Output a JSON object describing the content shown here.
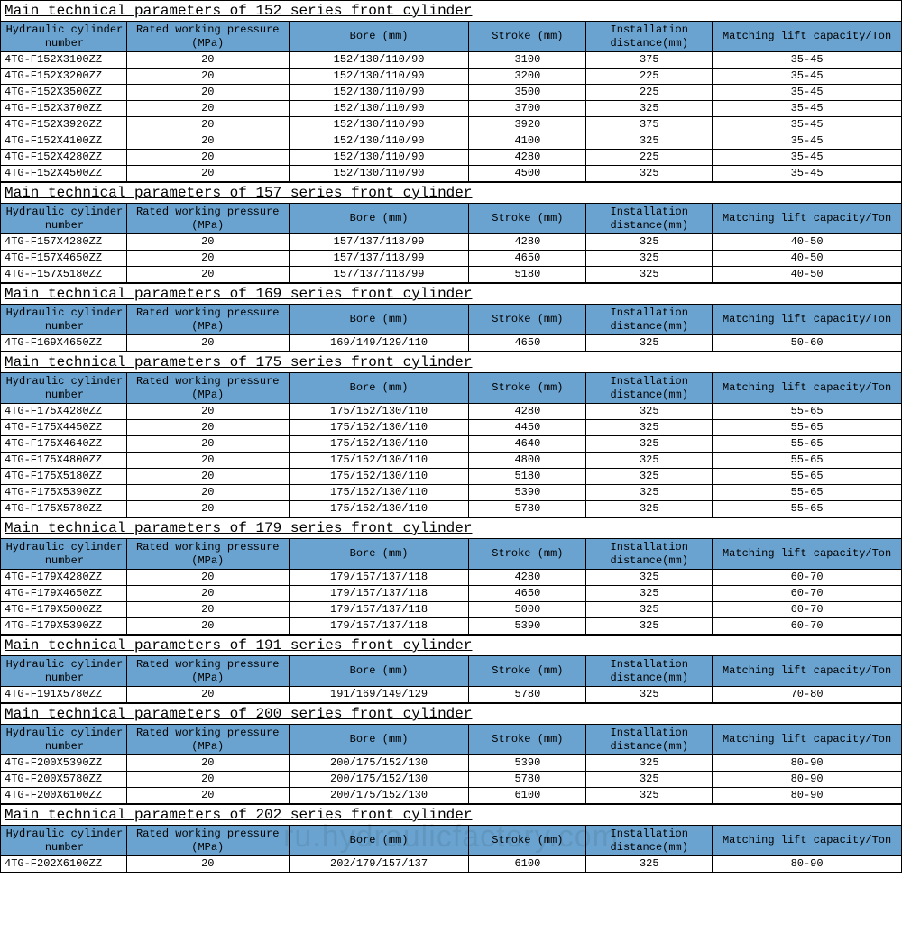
{
  "columns": [
    "Hydraulic cylinder number",
    "Rated working pressure (MPa)",
    "Bore (mm)",
    "Stroke (mm)",
    "Installation distance(mm)",
    "Matching lift capacity/Ton"
  ],
  "watermark": "ru.hydraulicfactory.com",
  "header_bg": "#6aa3d0",
  "sections": [
    {
      "title": "Main technical parameters of 152 series front cylinder",
      "rows": [
        [
          "4TG-F152X3100ZZ",
          "20",
          "152/130/110/90",
          "3100",
          "375",
          "35-45"
        ],
        [
          "4TG-F152X3200ZZ",
          "20",
          "152/130/110/90",
          "3200",
          "225",
          "35-45"
        ],
        [
          "4TG-F152X3500ZZ",
          "20",
          "152/130/110/90",
          "3500",
          "225",
          "35-45"
        ],
        [
          "4TG-F152X3700ZZ",
          "20",
          "152/130/110/90",
          "3700",
          "325",
          "35-45"
        ],
        [
          "4TG-F152X3920ZZ",
          "20",
          "152/130/110/90",
          "3920",
          "375",
          "35-45"
        ],
        [
          "4TG-F152X4100ZZ",
          "20",
          "152/130/110/90",
          "4100",
          "325",
          "35-45"
        ],
        [
          "4TG-F152X4280ZZ",
          "20",
          "152/130/110/90",
          "4280",
          "225",
          "35-45"
        ],
        [
          "4TG-F152X4500ZZ",
          "20",
          "152/130/110/90",
          "4500",
          "325",
          "35-45"
        ]
      ]
    },
    {
      "title": "Main technical parameters of 157 series front cylinder",
      "rows": [
        [
          "4TG-F157X4280ZZ",
          "20",
          "157/137/118/99",
          "4280",
          "325",
          "40-50"
        ],
        [
          "4TG-F157X4650ZZ",
          "20",
          "157/137/118/99",
          "4650",
          "325",
          "40-50"
        ],
        [
          "4TG-F157X5180ZZ",
          "20",
          "157/137/118/99",
          "5180",
          "325",
          "40-50"
        ]
      ]
    },
    {
      "title": "Main technical parameters of 169 series front cylinder",
      "rows": [
        [
          "4TG-F169X4650ZZ",
          "20",
          "169/149/129/110",
          "4650",
          "325",
          "50-60"
        ]
      ]
    },
    {
      "title": "Main technical parameters of 175 series front cylinder",
      "rows": [
        [
          "4TG-F175X4280ZZ",
          "20",
          "175/152/130/110",
          "4280",
          "325",
          "55-65"
        ],
        [
          "4TG-F175X4450ZZ",
          "20",
          "175/152/130/110",
          "4450",
          "325",
          "55-65"
        ],
        [
          "4TG-F175X4640ZZ",
          "20",
          "175/152/130/110",
          "4640",
          "325",
          "55-65"
        ],
        [
          "4TG-F175X4800ZZ",
          "20",
          "175/152/130/110",
          "4800",
          "325",
          "55-65"
        ],
        [
          "4TG-F175X5180ZZ",
          "20",
          "175/152/130/110",
          "5180",
          "325",
          "55-65"
        ],
        [
          "4TG-F175X5390ZZ",
          "20",
          "175/152/130/110",
          "5390",
          "325",
          "55-65"
        ],
        [
          "4TG-F175X5780ZZ",
          "20",
          "175/152/130/110",
          "5780",
          "325",
          "55-65"
        ]
      ]
    },
    {
      "title": "Main technical parameters of 179 series front cylinder",
      "rows": [
        [
          "4TG-F179X4280ZZ",
          "20",
          "179/157/137/118",
          "4280",
          "325",
          "60-70"
        ],
        [
          "4TG-F179X4650ZZ",
          "20",
          "179/157/137/118",
          "4650",
          "325",
          "60-70"
        ],
        [
          "4TG-F179X5000ZZ",
          "20",
          "179/157/137/118",
          "5000",
          "325",
          "60-70"
        ],
        [
          "4TG-F179X5390ZZ",
          "20",
          "179/157/137/118",
          "5390",
          "325",
          "60-70"
        ]
      ]
    },
    {
      "title": "Main technical parameters of 191 series front cylinder",
      "rows": [
        [
          "4TG-F191X5780ZZ",
          "20",
          "191/169/149/129",
          "5780",
          "325",
          "70-80"
        ]
      ]
    },
    {
      "title": "Main technical parameters of 200 series front cylinder",
      "rows": [
        [
          "4TG-F200X5390ZZ",
          "20",
          "200/175/152/130",
          "5390",
          "325",
          "80-90"
        ],
        [
          "4TG-F200X5780ZZ",
          "20",
          "200/175/152/130",
          "5780",
          "325",
          "80-90"
        ],
        [
          "4TG-F200X6100ZZ",
          "20",
          "200/175/152/130",
          "6100",
          "325",
          "80-90"
        ]
      ]
    },
    {
      "title": "Main technical parameters of 202 series front cylinder",
      "rows": [
        [
          "4TG-F202X6100ZZ",
          "20",
          "202/179/157/137",
          "6100",
          "325",
          "80-90"
        ]
      ]
    }
  ]
}
